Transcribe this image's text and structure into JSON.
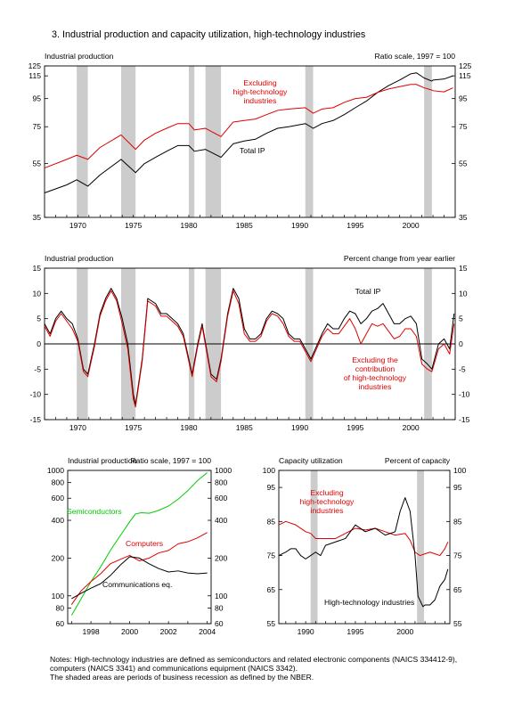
{
  "figure_title": "3.  Industrial production and capacity utilization, high-technology industries",
  "colors": {
    "total": "#000000",
    "excluding": "#dd0000",
    "semiconductors": "#00cc00",
    "computers": "#dd0000",
    "communications": "#000000",
    "recession": "#cccccc"
  },
  "recession_periods": [
    [
      1969.9,
      1970.9
    ],
    [
      1973.9,
      1975.2
    ],
    [
      1980.0,
      1980.5
    ],
    [
      1981.5,
      1982.9
    ],
    [
      1990.5,
      1991.2
    ],
    [
      2001.2,
      2001.9
    ]
  ],
  "chart_data": [
    {
      "id": "panel1",
      "type": "line",
      "title": "Industrial production",
      "scale_note": "Ratio scale, 1997 = 100",
      "log_scale": true,
      "xlim": [
        1967,
        2004
      ],
      "ylim": [
        35,
        125
      ],
      "yticks": [
        35,
        55,
        75,
        95,
        115,
        125
      ],
      "xticks": [
        1970,
        1975,
        1980,
        1985,
        1990,
        1995,
        2000
      ],
      "xtick_labels": [
        "1970",
        "1975",
        "1980",
        "1985",
        "1990",
        "1995",
        "2000"
      ],
      "annotations": [
        {
          "series": 0,
          "lines": [
            "Total IP"
          ]
        },
        {
          "series": 1,
          "lines": [
            "Excluding",
            "high-technology",
            "industries"
          ]
        }
      ],
      "series": [
        {
          "color_key": "total",
          "x": [
            1967,
            1969,
            1969.9,
            1970.9,
            1972,
            1973.9,
            1975.2,
            1976,
            1977,
            1978,
            1979,
            1980,
            1980.5,
            1981.5,
            1982.9,
            1984,
            1985,
            1986,
            1987,
            1988,
            1989,
            1990.5,
            1991.2,
            1992,
            1993,
            1994,
            1995,
            1996,
            1997,
            1998,
            1999,
            2000,
            2000.5,
            2001.2,
            2001.9,
            2002,
            2003,
            2003.8
          ],
          "y": [
            43,
            46,
            48,
            45.5,
            50,
            57,
            51,
            55,
            58,
            61,
            64,
            64,
            61,
            62,
            58,
            65,
            66.5,
            67.5,
            71,
            74,
            75,
            77,
            74,
            77,
            79,
            83,
            88,
            93,
            100,
            106,
            111,
            117,
            118,
            113,
            110,
            111,
            112,
            115
          ]
        },
        {
          "color_key": "excluding",
          "x": [
            1967,
            1969,
            1969.9,
            1970.9,
            1972,
            1973.9,
            1975.2,
            1976,
            1977,
            1978,
            1979,
            1980,
            1980.5,
            1981.5,
            1982.9,
            1984,
            1985,
            1986,
            1987,
            1988,
            1989,
            1990.5,
            1991.2,
            1992,
            1993,
            1994,
            1995,
            1996,
            1997,
            1998,
            1999,
            2000,
            2000.5,
            2001.2,
            2001.9,
            2002,
            2003,
            2003.8
          ],
          "y": [
            53,
            57,
            59,
            57,
            63,
            70,
            62,
            67,
            71,
            74,
            77,
            77,
            73,
            74,
            69,
            78,
            79,
            80,
            83,
            86,
            87,
            88,
            84,
            87,
            88,
            92,
            95,
            96,
            100,
            103,
            105,
            107,
            107,
            104,
            102,
            101.5,
            100.5,
            104
          ]
        }
      ]
    },
    {
      "id": "panel2",
      "type": "line",
      "title": "Industrial production",
      "scale_note": "Percent change from year earlier",
      "log_scale": false,
      "xlim": [
        1967,
        2004
      ],
      "ylim": [
        -15,
        15
      ],
      "yticks": [
        -15,
        -10,
        -5,
        0,
        5,
        10,
        15
      ],
      "xticks": [
        1970,
        1975,
        1980,
        1985,
        1990,
        1995,
        2000
      ],
      "xtick_labels": [
        "1970",
        "1975",
        "1980",
        "1985",
        "1990",
        "1995",
        "2000"
      ],
      "zero_line": true,
      "annotations": [
        {
          "series": 0,
          "lines": [
            "Total IP"
          ]
        },
        {
          "series": 1,
          "lines": [
            "Excluding the",
            "contribution",
            "of high-technology",
            "industries"
          ]
        }
      ],
      "series": [
        {
          "color_key": "total",
          "x": [
            1967,
            1967.5,
            1968,
            1968.5,
            1969,
            1969.5,
            1970,
            1970.5,
            1970.9,
            1971.5,
            1972,
            1972.5,
            1973,
            1973.5,
            1974,
            1974.5,
            1975,
            1975.2,
            1975.8,
            1976.3,
            1977,
            1977.5,
            1978,
            1978.5,
            1979,
            1979.5,
            1980,
            1980.3,
            1980.8,
            1981.2,
            1981.6,
            1982,
            1982.5,
            1982.9,
            1983.5,
            1984,
            1984.5,
            1985,
            1985.5,
            1986,
            1986.5,
            1987,
            1987.5,
            1988,
            1988.5,
            1989,
            1989.5,
            1990,
            1990.5,
            1991,
            1991.2,
            1992,
            1992.5,
            1993,
            1993.5,
            1994,
            1994.5,
            1995,
            1995.5,
            1996,
            1996.5,
            1997,
            1997.5,
            1998,
            1998.5,
            1999,
            1999.5,
            2000,
            2000.5,
            2001,
            2001.5,
            2001.9,
            2002.5,
            2003,
            2003.5,
            2003.9
          ],
          "y": [
            4,
            2,
            5,
            6.5,
            5,
            4,
            1,
            -5,
            -6,
            0,
            6,
            9,
            11,
            9,
            5,
            0,
            -10,
            -12,
            -3,
            9,
            8,
            6,
            6,
            5,
            4,
            2,
            -3,
            -6,
            0,
            4,
            -1,
            -6,
            -7,
            -3,
            6,
            11,
            9,
            3,
            1,
            1,
            2,
            5,
            6.5,
            6,
            5,
            2,
            1,
            1,
            -1,
            -3,
            -2,
            2,
            4,
            3,
            3,
            5,
            6.5,
            6,
            4,
            5,
            6.5,
            7,
            8,
            6,
            4,
            4,
            5,
            5.5,
            4,
            -3,
            -4,
            -5,
            0,
            1,
            -1,
            6
          ]
        },
        {
          "color_key": "excluding",
          "x": [
            1967,
            1967.5,
            1968,
            1968.5,
            1969,
            1969.5,
            1970,
            1970.5,
            1970.9,
            1971.5,
            1972,
            1972.5,
            1973,
            1973.5,
            1974,
            1974.5,
            1975,
            1975.2,
            1975.8,
            1976.3,
            1977,
            1977.5,
            1978,
            1978.5,
            1979,
            1979.5,
            1980,
            1980.3,
            1980.8,
            1981.2,
            1981.6,
            1982,
            1982.5,
            1982.9,
            1983.5,
            1984,
            1984.5,
            1985,
            1985.5,
            1986,
            1986.5,
            1987,
            1987.5,
            1988,
            1988.5,
            1989,
            1989.5,
            1990,
            1990.5,
            1991,
            1991.2,
            1992,
            1992.5,
            1993,
            1993.5,
            1994,
            1994.5,
            1995,
            1995.5,
            1996,
            1996.5,
            1997,
            1997.5,
            1998,
            1998.5,
            1999,
            1999.5,
            2000,
            2000.5,
            2001,
            2001.5,
            2001.9,
            2002.5,
            2003,
            2003.5,
            2003.9
          ],
          "y": [
            3.5,
            1.5,
            4.5,
            6,
            4.5,
            3,
            0.5,
            -5.5,
            -6.5,
            -0.5,
            5.5,
            8.5,
            10.5,
            8.5,
            4,
            -1,
            -11,
            -12.5,
            -3.5,
            8.5,
            7.5,
            5.5,
            5.5,
            4.5,
            3.5,
            1.5,
            -3.5,
            -6.5,
            -0.5,
            3.5,
            -1.5,
            -6.5,
            -7.5,
            -3.5,
            5.5,
            10.5,
            8,
            2,
            0.5,
            0.5,
            1.5,
            4.5,
            6,
            5.5,
            4,
            1.5,
            0.5,
            0.5,
            -1.5,
            -3.5,
            -2.5,
            1.5,
            3,
            2,
            2,
            3.5,
            5,
            3,
            0,
            2,
            4,
            3.5,
            4,
            2.5,
            1,
            1.5,
            3,
            3,
            1.5,
            -4,
            -5,
            -5.5,
            -1,
            0,
            -2,
            4
          ]
        }
      ]
    },
    {
      "id": "panel3",
      "type": "line",
      "title": "Industrial production",
      "scale_note": "Ratio scale, 1997 = 100",
      "log_scale": true,
      "xlim": [
        1996.8,
        2004.2
      ],
      "ylim": [
        60,
        1000
      ],
      "yticks": [
        60,
        80,
        100,
        200,
        400,
        600,
        800,
        1000
      ],
      "xticks": [
        1998,
        2000,
        2002,
        2004
      ],
      "xtick_labels": [
        "1998",
        "2000",
        "2002",
        "2004"
      ],
      "annotations": [
        {
          "series": 0,
          "lines": [
            "Semiconductors"
          ]
        },
        {
          "series": 1,
          "lines": [
            "Computers"
          ]
        },
        {
          "series": 2,
          "lines": [
            "Communications eq."
          ]
        }
      ],
      "series": [
        {
          "color_key": "semiconductors",
          "x": [
            1997,
            1997.5,
            1998,
            1998.5,
            1999,
            1999.5,
            2000,
            2000.3,
            2000.6,
            2001,
            2001.5,
            2002,
            2002.5,
            2003,
            2003.5,
            2004
          ],
          "y": [
            70,
            95,
            130,
            170,
            230,
            300,
            390,
            450,
            460,
            455,
            480,
            520,
            590,
            690,
            830,
            960
          ]
        },
        {
          "color_key": "computers",
          "x": [
            1997,
            1997.5,
            1998,
            1998.5,
            1999,
            1999.5,
            2000,
            2000.5,
            2001,
            2001.5,
            2002,
            2002.5,
            2003,
            2003.5,
            2004
          ],
          "y": [
            85,
            110,
            130,
            150,
            180,
            195,
            210,
            190,
            200,
            220,
            230,
            260,
            270,
            290,
            320
          ]
        },
        {
          "color_key": "communications",
          "x": [
            1997,
            1997.5,
            1998,
            1998.5,
            1999,
            1999.5,
            2000,
            2000.5,
            2001,
            2001.5,
            2002,
            2002.5,
            2003,
            2003.5,
            2004
          ],
          "y": [
            95,
            105,
            115,
            125,
            145,
            175,
            205,
            200,
            180,
            165,
            155,
            158,
            152,
            150,
            152
          ]
        }
      ]
    },
    {
      "id": "panel4",
      "type": "line",
      "title": "Capacity utilization",
      "scale_note": "Percent of capacity",
      "log_scale": false,
      "xlim": [
        1987.3,
        2004.5
      ],
      "ylim": [
        55,
        100
      ],
      "yticks": [
        55,
        65,
        75,
        85,
        95,
        100
      ],
      "xticks": [
        1990,
        1995,
        2000
      ],
      "xtick_labels": [
        "1990",
        "1995",
        "2000"
      ],
      "annotations": [
        {
          "series": 0,
          "lines": [
            "Excluding",
            "high-technology",
            "industries"
          ]
        },
        {
          "series": 1,
          "lines": [
            "High-technology industries"
          ]
        }
      ],
      "series": [
        {
          "color_key": "excluding",
          "x": [
            1987.3,
            1988,
            1989,
            1990,
            1990.5,
            1991,
            1991.5,
            1992,
            1993,
            1994,
            1995,
            1996,
            1997,
            1998,
            1999,
            2000,
            2000.5,
            2001,
            2001.5,
            2002,
            2002.5,
            2003,
            2003.5,
            2004,
            2004.3
          ],
          "y": [
            84,
            85,
            84,
            82,
            81.5,
            80,
            80,
            80,
            80,
            81.5,
            83,
            82.5,
            83,
            82,
            81,
            81.5,
            79.5,
            76,
            75,
            75.5,
            76,
            75.5,
            75,
            77,
            79
          ]
        },
        {
          "color_key": "total",
          "x": [
            1987.3,
            1988,
            1988.5,
            1989,
            1989.5,
            1990,
            1990.5,
            1991,
            1991.5,
            1992,
            1993,
            1994,
            1995,
            1996,
            1997,
            1998,
            1999,
            1999.5,
            2000,
            2000.5,
            2001,
            2001.3,
            2001.8,
            2002,
            2002.5,
            2003,
            2003.5,
            2004,
            2004.3
          ],
          "y": [
            75,
            76,
            77,
            77,
            75,
            74,
            75,
            76,
            75,
            78,
            79,
            80,
            84,
            82,
            83,
            81,
            82,
            88,
            92,
            88,
            75,
            63,
            60,
            60.5,
            60.5,
            62,
            66,
            68,
            71
          ]
        }
      ]
    }
  ],
  "notes": [
    "Notes:  High-technology industries are defined as semiconductors and related electronic components (NAICS 334412-9),",
    "computers (NAICS 3341) and communications equipment (NAICS 3342).",
    "The shaded areas are periods of business recession as defined by the NBER."
  ]
}
